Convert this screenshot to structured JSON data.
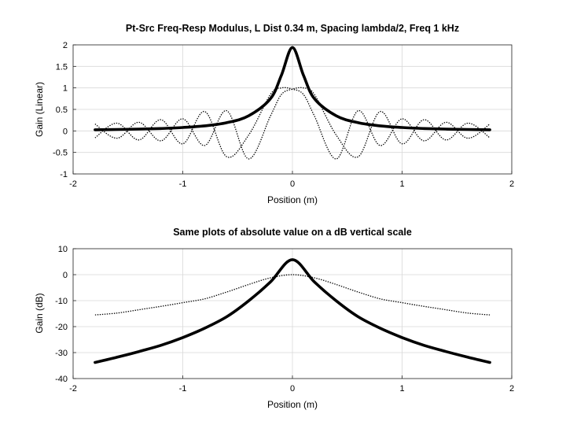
{
  "chart_data": [
    {
      "type": "line",
      "title": "Pt-Src Freq-Resp Modulus, L Dist 0.34 m, Spacing lambda/2, Freq 1 kHz",
      "xlabel": "Position (m)",
      "ylabel": "Gain (Linear)",
      "xlim": [
        -2,
        2
      ],
      "ylim": [
        -1,
        2
      ],
      "xticks": [
        "-2",
        "-1",
        "0",
        "1",
        "2"
      ],
      "yticks": [
        "-1",
        "-0.5",
        "0",
        "0.5",
        "1",
        "1.5",
        "2"
      ],
      "grid": true,
      "legend": "none",
      "x": [
        -1.8,
        -1.6,
        -1.4,
        -1.2,
        -1.0,
        -0.8,
        -0.6,
        -0.4,
        -0.2,
        -0.1,
        0.0,
        0.1,
        0.2,
        0.4,
        0.6,
        0.8,
        1.0,
        1.2,
        1.4,
        1.6,
        1.8
      ],
      "series": [
        {
          "style": "solid-thick",
          "values": [
            0.026,
            0.033,
            0.042,
            0.056,
            0.079,
            0.118,
            0.19,
            0.35,
            0.75,
            1.3,
            1.94,
            1.3,
            0.75,
            0.35,
            0.19,
            0.118,
            0.079,
            0.056,
            0.042,
            0.033,
            0.026
          ]
        },
        {
          "style": "dotted",
          "values": [
            0.16,
            -0.17,
            0.2,
            -0.23,
            0.28,
            -0.34,
            0.47,
            -0.65,
            0.35,
            0.85,
            0.97,
            1.0,
            0.85,
            -0.1,
            -0.6,
            0.45,
            -0.3,
            0.26,
            -0.21,
            0.18,
            -0.16
          ]
        },
        {
          "style": "dotted",
          "values": [
            -0.16,
            0.18,
            -0.21,
            0.26,
            -0.3,
            0.45,
            -0.6,
            -0.1,
            0.85,
            1.0,
            0.97,
            0.85,
            0.35,
            -0.65,
            0.47,
            -0.34,
            0.28,
            -0.23,
            0.2,
            -0.17,
            0.16
          ]
        }
      ]
    },
    {
      "type": "line",
      "title": "Same plots of absolute value on a dB vertical scale",
      "xlabel": "Position (m)",
      "ylabel": "Gain (dB)",
      "xlim": [
        -2,
        2
      ],
      "ylim": [
        -40,
        10
      ],
      "xticks": [
        "-2",
        "-1",
        "0",
        "1",
        "2"
      ],
      "yticks": [
        "-40",
        "-30",
        "-20",
        "-10",
        "0",
        "10"
      ],
      "grid": true,
      "legend": "none",
      "x": [
        -1.8,
        -1.6,
        -1.4,
        -1.2,
        -1.0,
        -0.8,
        -0.6,
        -0.4,
        -0.2,
        0.0,
        0.2,
        0.4,
        0.6,
        0.8,
        1.0,
        1.2,
        1.4,
        1.6,
        1.8
      ],
      "series": [
        {
          "style": "solid-thick",
          "values": [
            -33.8,
            -31.8,
            -29.6,
            -27.2,
            -24.2,
            -20.6,
            -16.2,
            -10.1,
            -2.8,
            5.8,
            -2.8,
            -10.1,
            -16.2,
            -20.6,
            -24.2,
            -27.2,
            -29.6,
            -31.8,
            -33.8
          ]
        },
        {
          "style": "dotted",
          "values": [
            -15.5,
            -14.8,
            -13.5,
            -12.2,
            -10.8,
            -9.3,
            -6.7,
            -3.8,
            -1.2,
            0.0,
            -1.2,
            -3.8,
            -6.7,
            -9.3,
            -10.8,
            -12.2,
            -13.5,
            -14.8,
            -15.5
          ]
        }
      ]
    }
  ]
}
